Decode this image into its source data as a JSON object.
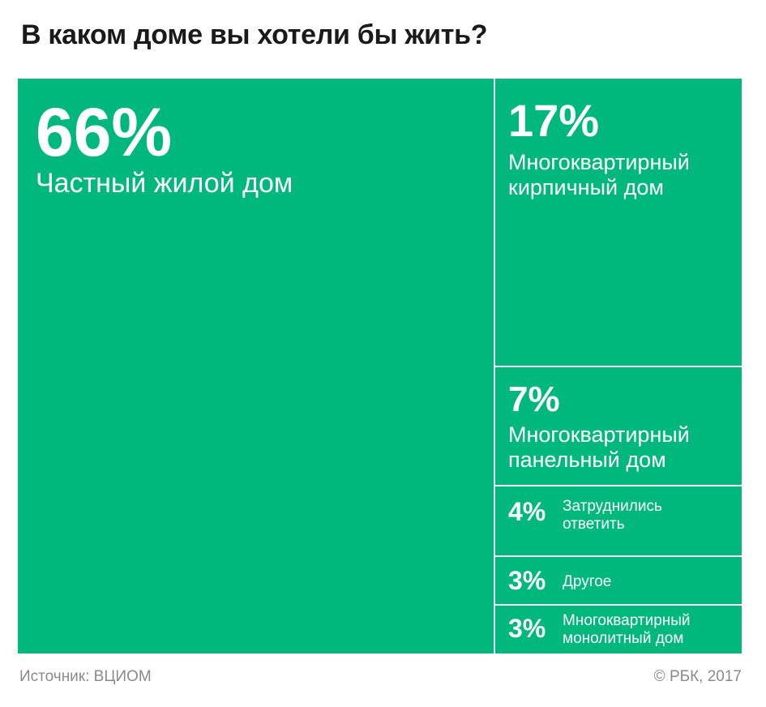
{
  "title": "В каком доме вы хотели бы жить?",
  "footer": {
    "source": "Источник: ВЦИОМ",
    "copyright": "© РБК, 2017"
  },
  "colors": {
    "tile": "#00b87c",
    "divider": "#ffffff",
    "title": "#1a1a1a",
    "footer": "#8a8a8a"
  },
  "chart_data": {
    "type": "treemap",
    "title": "В каком доме вы хотели бы жить?",
    "unit": "%",
    "items": [
      {
        "pct": "66%",
        "value": 66,
        "label": "Частный жилой дом"
      },
      {
        "pct": "17%",
        "value": 17,
        "label": "Многоквартирный кирпичный дом"
      },
      {
        "pct": "7%",
        "value": 7,
        "label": "Многоквартирный панельный дом"
      },
      {
        "pct": "4%",
        "value": 4,
        "label": "Затруднились ответить"
      },
      {
        "pct": "3%",
        "value": 3,
        "label": "Другое"
      },
      {
        "pct": "3%",
        "value": 3,
        "label": "Многоквартирный монолитный дом"
      }
    ]
  }
}
